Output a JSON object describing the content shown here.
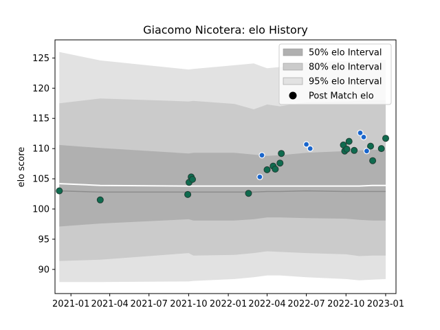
{
  "chart_data": {
    "type": "scatter",
    "title": "Giacomo Nicotera: elo History",
    "xlabel": "",
    "ylabel": "elo score",
    "x_axis": {
      "type": "date",
      "range": [
        "2020-11-25",
        "2023-01-25"
      ],
      "ticks": [
        "2021-01-01",
        "2021-04-01",
        "2021-07-01",
        "2021-10-01",
        "2022-01-01",
        "2022-04-01",
        "2022-07-01",
        "2022-10-01",
        "2023-01-01"
      ],
      "tick_labels": [
        "2021-01",
        "2021-04",
        "2021-07",
        "2021-10",
        "2022-01",
        "2022-04",
        "2022-07",
        "2022-10",
        "2023-01"
      ]
    },
    "y_axis": {
      "range": [
        86,
        128
      ],
      "ticks": [
        90,
        95,
        100,
        105,
        110,
        115,
        120,
        125
      ]
    },
    "grid": false,
    "legend_position": "top-right",
    "legend": [
      {
        "label": "50% elo Interval",
        "kind": "patch",
        "color": "#b0b0b0"
      },
      {
        "label": "80% elo Interval",
        "kind": "patch",
        "color": "#cbcbcb"
      },
      {
        "label": "95% elo Interval",
        "kind": "patch",
        "color": "#e2e2e2"
      },
      {
        "label": "Post Match elo",
        "kind": "marker",
        "color": "#000000"
      }
    ],
    "colors": {
      "band_50": "#b0b0b0",
      "band_80": "#cbcbcb",
      "band_95": "#e2e2e2",
      "mean_line": "#8c8c8c",
      "upper_line": "#ffffff",
      "point_green": "#0f6b4f",
      "point_blue": "#1a66cc"
    },
    "bands": {
      "dates": [
        "2020-12-05",
        "2021-03-10",
        "2021-10-01",
        "2021-10-12",
        "2022-01-15",
        "2022-03-01",
        "2022-04-01",
        "2022-05-01",
        "2022-07-01",
        "2022-10-01",
        "2022-11-01",
        "2022-12-01",
        "2023-01-01"
      ],
      "mean": [
        103.0,
        102.8,
        102.8,
        102.8,
        102.8,
        102.8,
        102.9,
        102.9,
        103.0,
        102.9,
        102.9,
        102.9,
        102.9
      ],
      "upper_line": [
        104.2,
        103.9,
        103.8,
        103.8,
        103.8,
        103.8,
        103.8,
        103.8,
        103.8,
        103.8,
        103.8,
        103.9,
        103.9
      ],
      "p50_low": [
        97.1,
        97.6,
        98.3,
        98.1,
        98.1,
        98.3,
        98.6,
        98.6,
        98.5,
        98.4,
        98.2,
        98.1,
        98.1
      ],
      "p50_high": [
        110.6,
        110.1,
        109.2,
        109.3,
        109.3,
        109.0,
        108.8,
        108.9,
        109.3,
        109.6,
        109.7,
        109.8,
        109.8
      ],
      "p80_low": [
        91.4,
        91.6,
        92.7,
        92.3,
        92.4,
        92.7,
        93.0,
        92.9,
        92.7,
        92.5,
        92.2,
        92.3,
        92.3
      ],
      "p80_high": [
        117.5,
        118.3,
        117.8,
        117.9,
        117.4,
        116.5,
        117.3,
        117.0,
        117.7,
        117.8,
        117.9,
        118.0,
        118.0
      ],
      "p95_low": [
        87.9,
        87.9,
        88.0,
        88.1,
        88.4,
        88.7,
        89.0,
        89.0,
        88.7,
        88.4,
        88.2,
        88.3,
        88.4
      ],
      "p95_high": [
        126.0,
        124.6,
        123.1,
        123.2,
        123.8,
        124.1,
        123.3,
        123.5,
        124.3,
        124.5,
        124.6,
        124.7,
        124.7
      ]
    },
    "series": [
      {
        "name": "Post Match elo",
        "color": "#0f6b4f",
        "points": [
          {
            "x": "2020-12-05",
            "y": 103.0
          },
          {
            "x": "2021-03-10",
            "y": 101.5
          },
          {
            "x": "2021-09-29",
            "y": 102.4
          },
          {
            "x": "2021-10-02",
            "y": 104.4
          },
          {
            "x": "2021-10-07",
            "y": 105.3
          },
          {
            "x": "2021-10-10",
            "y": 104.9
          },
          {
            "x": "2022-02-17",
            "y": 102.6
          },
          {
            "x": "2022-04-01",
            "y": 106.5
          },
          {
            "x": "2022-04-15",
            "y": 107.1
          },
          {
            "x": "2022-04-20",
            "y": 106.6
          },
          {
            "x": "2022-05-01",
            "y": 107.6
          },
          {
            "x": "2022-05-04",
            "y": 109.2
          },
          {
            "x": "2022-09-25",
            "y": 110.6
          },
          {
            "x": "2022-09-28",
            "y": 109.6
          },
          {
            "x": "2022-10-03",
            "y": 109.9
          },
          {
            "x": "2022-10-08",
            "y": 111.2
          },
          {
            "x": "2022-10-20",
            "y": 109.7
          },
          {
            "x": "2022-11-27",
            "y": 110.4
          },
          {
            "x": "2022-12-02",
            "y": 108.0
          },
          {
            "x": "2022-12-22",
            "y": 110.0
          },
          {
            "x": "2023-01-01",
            "y": 111.7
          }
        ]
      },
      {
        "name": "",
        "color": "#1a66cc",
        "points": [
          {
            "x": "2022-03-15",
            "y": 105.3
          },
          {
            "x": "2022-03-20",
            "y": 108.9
          },
          {
            "x": "2022-07-01",
            "y": 110.7
          },
          {
            "x": "2022-07-10",
            "y": 110.0
          },
          {
            "x": "2022-11-03",
            "y": 112.6
          },
          {
            "x": "2022-11-11",
            "y": 111.9
          },
          {
            "x": "2022-11-18",
            "y": 109.6
          }
        ]
      }
    ]
  }
}
